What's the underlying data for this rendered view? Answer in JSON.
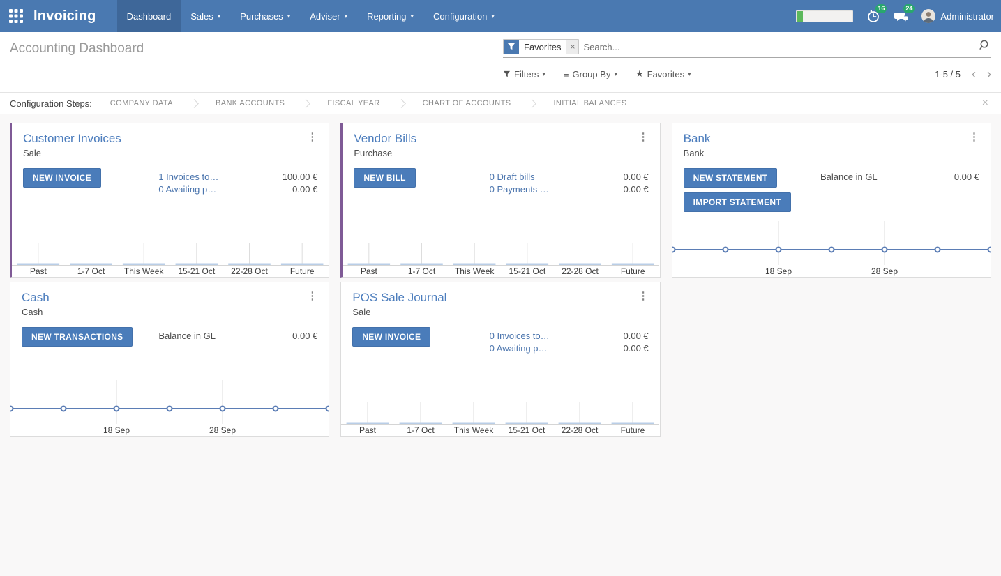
{
  "navbar": {
    "brand": "Invoicing",
    "menus": [
      {
        "label": "Dashboard",
        "dropdown": false,
        "active": true
      },
      {
        "label": "Sales",
        "dropdown": true
      },
      {
        "label": "Purchases",
        "dropdown": true
      },
      {
        "label": "Adviser",
        "dropdown": true
      },
      {
        "label": "Reporting",
        "dropdown": true
      },
      {
        "label": "Configuration",
        "dropdown": true
      }
    ],
    "systray": {
      "timer_badge": "16",
      "messages_badge": "24",
      "user": "Administrator"
    }
  },
  "control_panel": {
    "breadcrumb": "Accounting Dashboard",
    "search": {
      "facet": "Favorites",
      "placeholder": "Search..."
    },
    "filters_label": "Filters",
    "group_by_label": "Group By",
    "favorites_label": "Favorites",
    "pager": "1-5 / 5"
  },
  "config_steps": {
    "label": "Configuration Steps:",
    "steps": [
      "COMPANY DATA",
      "BANK ACCOUNTS",
      "FISCAL YEAR",
      "CHART OF ACCOUNTS",
      "INITIAL BALANCES"
    ]
  },
  "cards": [
    {
      "title": "Customer Invoices",
      "subtitle": "Sale",
      "buttons": [
        "NEW INVOICE"
      ],
      "rows": [
        {
          "text": "1 Invoices to…",
          "amount": "100.00 €"
        },
        {
          "text": "0 Awaiting p…",
          "amount": "0.00 €"
        }
      ],
      "chart": {
        "type": "bar",
        "title": "Customer Invoices weekly totals",
        "categories": [
          "Past",
          "1-7 Oct",
          "This Week",
          "15-21 Oct",
          "22-28 Oct",
          "Future"
        ],
        "values": [
          0,
          0,
          0,
          0,
          0,
          0
        ],
        "ylim": [
          0,
          1
        ],
        "bar_color": "#b9cee7"
      }
    },
    {
      "title": "Vendor Bills",
      "subtitle": "Purchase",
      "buttons": [
        "NEW BILL"
      ],
      "rows": [
        {
          "text": "0 Draft bills",
          "amount": "0.00 €"
        },
        {
          "text": "0 Payments …",
          "amount": "0.00 €"
        }
      ],
      "chart": {
        "type": "bar",
        "title": "Vendor Bills weekly totals",
        "categories": [
          "Past",
          "1-7 Oct",
          "This Week",
          "15-21 Oct",
          "22-28 Oct",
          "Future"
        ],
        "values": [
          0,
          0,
          0,
          0,
          0,
          0
        ],
        "ylim": [
          0,
          1
        ],
        "bar_color": "#b9cee7"
      }
    },
    {
      "title": "Bank",
      "subtitle": "Bank",
      "buttons": [
        "NEW STATEMENT",
        "IMPORT STATEMENT"
      ],
      "rows": [
        {
          "text": "Balance in GL",
          "amount": "0.00 €",
          "static": true
        }
      ],
      "chart": {
        "type": "line",
        "title": "Bank balance trend",
        "values": [
          0,
          0,
          0,
          0,
          0,
          0,
          0
        ],
        "grid_at": [
          2,
          4
        ],
        "tick_labels": [
          "18 Sep",
          "28 Sep"
        ],
        "ylim": [
          0,
          1
        ],
        "line_color": "#5b7db5"
      }
    },
    {
      "title": "Cash",
      "subtitle": "Cash",
      "buttons": [
        "NEW TRANSACTIONS"
      ],
      "rows": [
        {
          "text": "Balance in GL",
          "amount": "0.00 €",
          "static": true
        }
      ],
      "chart": {
        "type": "line",
        "title": "Cash balance trend",
        "values": [
          0,
          0,
          0,
          0,
          0,
          0,
          0
        ],
        "grid_at": [
          2,
          4
        ],
        "tick_labels": [
          "18 Sep",
          "28 Sep"
        ],
        "ylim": [
          0,
          1
        ],
        "line_color": "#5b7db5"
      }
    },
    {
      "title": "POS Sale Journal",
      "subtitle": "Sale",
      "buttons": [
        "NEW INVOICE"
      ],
      "rows": [
        {
          "text": "0 Invoices to…",
          "amount": "0.00 €"
        },
        {
          "text": "0 Awaiting p…",
          "amount": "0.00 €"
        }
      ],
      "chart": {
        "type": "bar",
        "title": "POS Sale Journal weekly totals",
        "categories": [
          "Past",
          "1-7 Oct",
          "This Week",
          "15-21 Oct",
          "22-28 Oct",
          "Future"
        ],
        "values": [
          0,
          0,
          0,
          0,
          0,
          0
        ],
        "ylim": [
          0,
          1
        ],
        "bar_color": "#b9cee7"
      }
    }
  ],
  "icons": {
    "caret_down": "▾",
    "kebab": "⋮",
    "close": "×",
    "chevron_left": "‹",
    "chevron_right": "›",
    "star": "★",
    "group_by": "≡"
  },
  "colors": {
    "navbar": "#4a79b1",
    "navbar_active": "#3e6799",
    "accent_purple": "#7f5a96",
    "button_blue": "#4a7cba",
    "link_blue": "#4a74ad",
    "badge_green": "#28a76d",
    "progress_green": "#5cb85c",
    "bar_fill": "#b9cee7",
    "line_blue": "#5b7db5"
  }
}
